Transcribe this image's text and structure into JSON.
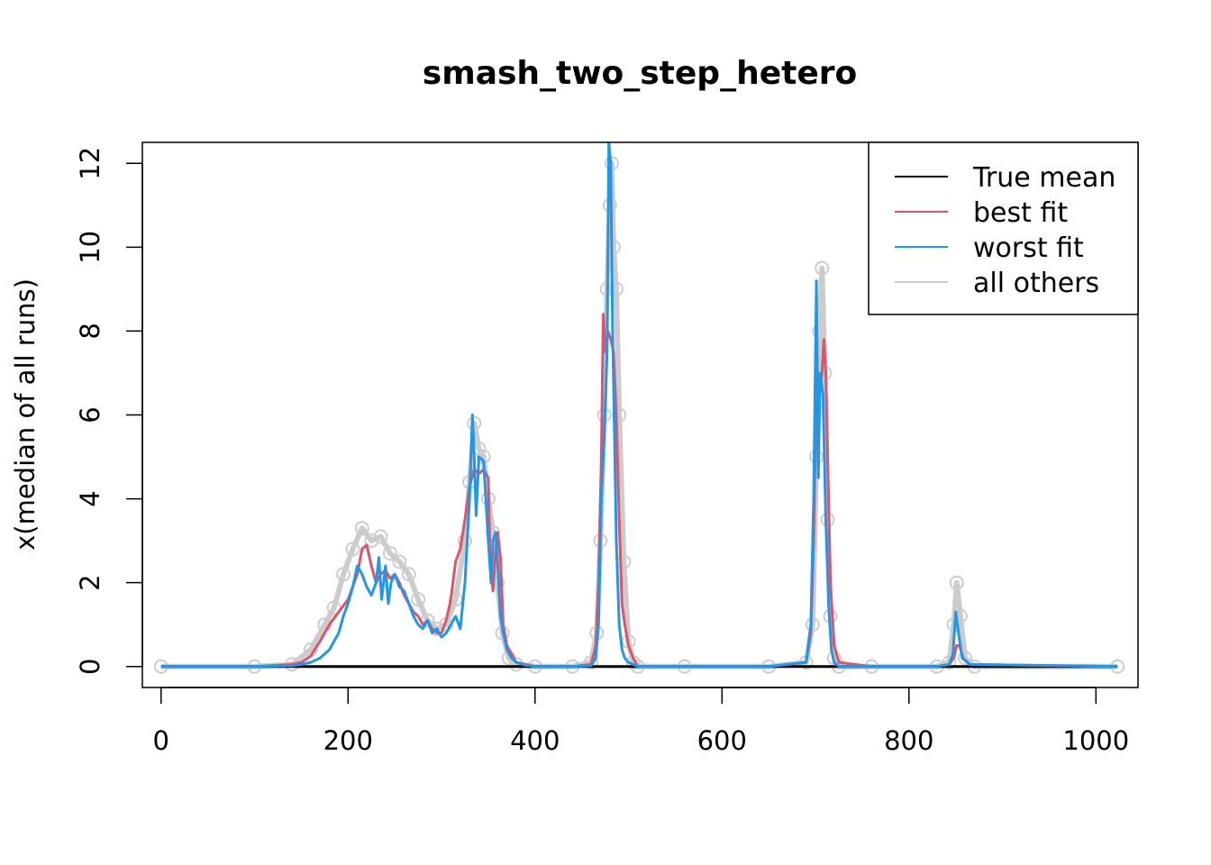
{
  "chart_data": {
    "type": "line",
    "title": "smash_two_step_hetero",
    "xlabel": "",
    "ylabel": "x(median of all runs)",
    "xlim": [
      -20,
      1045
    ],
    "ylim": [
      -0.5,
      12.5
    ],
    "x_ticks": [
      0,
      200,
      400,
      600,
      800,
      1000
    ],
    "y_ticks": [
      0,
      2,
      4,
      6,
      8,
      10,
      12
    ],
    "legend_position": "top-right",
    "legend": [
      {
        "label": "True mean",
        "color": "#000000"
      },
      {
        "label": "best fit",
        "color": "#DF536B"
      },
      {
        "label": "worst fit",
        "color": "#2297E6"
      },
      {
        "label": "all others",
        "color": "#CCCCCC"
      }
    ],
    "series": [
      {
        "name": "all others",
        "color": "#CCCCCC",
        "x": [
          0,
          100,
          140,
          160,
          175,
          185,
          195,
          205,
          215,
          225,
          235,
          245,
          255,
          265,
          275,
          285,
          295,
          305,
          315,
          325,
          330,
          335,
          340,
          345,
          350,
          355,
          360,
          365,
          372,
          380,
          400,
          440,
          460,
          466,
          470,
          474,
          477,
          480,
          482,
          484,
          487,
          490,
          495,
          500,
          505,
          510,
          560,
          650,
          690,
          697,
          701,
          704,
          707,
          710,
          713,
          716,
          720,
          725,
          760,
          830,
          843,
          848,
          851,
          855,
          860,
          870,
          1023
        ],
        "y": [
          0,
          0,
          0.05,
          0.4,
          1.0,
          1.4,
          2.2,
          2.8,
          3.3,
          3.0,
          3.1,
          2.7,
          2.5,
          2.2,
          1.6,
          1.1,
          0.9,
          1.0,
          1.6,
          3.0,
          4.4,
          5.8,
          5.2,
          5.0,
          4.0,
          3.2,
          2.0,
          0.8,
          0.2,
          0.05,
          0,
          0,
          0.1,
          0.8,
          3.0,
          6.0,
          9.0,
          11.0,
          12.0,
          10.0,
          9.0,
          6.0,
          2.5,
          0.6,
          0.1,
          0,
          0,
          0,
          0.1,
          1.0,
          5.0,
          8.0,
          9.5,
          7.0,
          3.5,
          1.2,
          0.2,
          0,
          0,
          0,
          0.1,
          1.0,
          2.0,
          1.2,
          0.2,
          0,
          0
        ]
      },
      {
        "name": "True mean",
        "color": "#000000",
        "x": [
          0,
          1023
        ],
        "y": [
          0,
          0
        ]
      },
      {
        "name": "best fit",
        "color": "#DF536B",
        "x": [
          0,
          100,
          140,
          150,
          160,
          170,
          180,
          190,
          200,
          210,
          215,
          220,
          225,
          230,
          235,
          240,
          245,
          250,
          255,
          260,
          265,
          270,
          275,
          280,
          285,
          290,
          295,
          300,
          305,
          310,
          315,
          320,
          325,
          330,
          335,
          340,
          345,
          350,
          352,
          355,
          358,
          360,
          363,
          366,
          370,
          375,
          380,
          390,
          400,
          440,
          460,
          465,
          468,
          471,
          473,
          475,
          478,
          481,
          484,
          487,
          490,
          493,
          496,
          500,
          505,
          510,
          560,
          650,
          690,
          695,
          698,
          701,
          704,
          707,
          709,
          711,
          713,
          716,
          720,
          725,
          760,
          830,
          843,
          848,
          851,
          854,
          858,
          865,
          1023
        ],
        "y": [
          0,
          0,
          0.05,
          0.1,
          0.25,
          0.6,
          1.0,
          1.3,
          1.6,
          2.2,
          2.8,
          2.9,
          2.4,
          2.0,
          2.2,
          2.3,
          2.1,
          2.2,
          2.0,
          1.7,
          1.5,
          1.3,
          1.2,
          1.0,
          1.1,
          0.9,
          0.8,
          0.8,
          1.1,
          1.6,
          2.5,
          2.8,
          3.5,
          4.3,
          4.7,
          4.6,
          4.7,
          4.5,
          2.5,
          1.8,
          2.8,
          3.2,
          2.6,
          1.0,
          0.5,
          0.3,
          0.1,
          0.05,
          0,
          0,
          0.05,
          0.5,
          2.0,
          5.0,
          8.4,
          7.5,
          8.0,
          7.8,
          7.5,
          6.0,
          3.5,
          1.5,
          1.0,
          0.5,
          0.2,
          0,
          0,
          0,
          0.1,
          0.8,
          3.0,
          6.5,
          6.5,
          7.0,
          7.8,
          7.0,
          5.0,
          2.0,
          0.5,
          0.1,
          0,
          0,
          0.05,
          0.2,
          0.5,
          0.5,
          0.2,
          0.05,
          0
        ]
      },
      {
        "name": "worst fit",
        "color": "#2297E6",
        "x": [
          0,
          100,
          140,
          150,
          160,
          170,
          180,
          190,
          195,
          200,
          205,
          210,
          215,
          220,
          225,
          230,
          233,
          236,
          240,
          243,
          246,
          250,
          255,
          260,
          265,
          270,
          275,
          280,
          285,
          290,
          295,
          300,
          305,
          310,
          315,
          320,
          325,
          330,
          333,
          335,
          337,
          340,
          345,
          350,
          353,
          355,
          358,
          360,
          363,
          366,
          370,
          375,
          380,
          390,
          400,
          440,
          460,
          465,
          468,
          471,
          474,
          477,
          479,
          481,
          483,
          485,
          487,
          490,
          493,
          496,
          500,
          505,
          510,
          560,
          650,
          690,
          695,
          698,
          701,
          703,
          705,
          708,
          711,
          714,
          717,
          720,
          725,
          760,
          830,
          843,
          847,
          850,
          853,
          857,
          865,
          1023
        ],
        "y": [
          0,
          0,
          0.02,
          0.05,
          0.1,
          0.2,
          0.4,
          0.8,
          1.2,
          1.5,
          1.9,
          2.4,
          2.2,
          1.9,
          1.7,
          2.0,
          2.6,
          1.6,
          2.4,
          1.5,
          2.0,
          2.2,
          1.9,
          1.8,
          1.5,
          1.2,
          1.0,
          0.9,
          1.1,
          0.8,
          0.9,
          0.7,
          0.8,
          1.0,
          1.2,
          0.9,
          2.0,
          4.0,
          6.0,
          5.0,
          3.6,
          5.0,
          4.9,
          3.0,
          2.0,
          3.0,
          3.2,
          2.5,
          1.2,
          0.8,
          0.4,
          0.2,
          0.1,
          0.03,
          0,
          0,
          0.02,
          0.2,
          1.0,
          4.0,
          5.5,
          7.5,
          12.5,
          12.0,
          8.0,
          5.5,
          3.0,
          1.0,
          0.4,
          0.2,
          0.1,
          0.05,
          0,
          0,
          0,
          0.1,
          1.0,
          4.0,
          9.2,
          4.5,
          7.0,
          6.5,
          3.5,
          1.5,
          0.4,
          0.1,
          0,
          0,
          0,
          0.05,
          0.3,
          1.3,
          0.8,
          0.2,
          0.05,
          0
        ]
      }
    ]
  }
}
